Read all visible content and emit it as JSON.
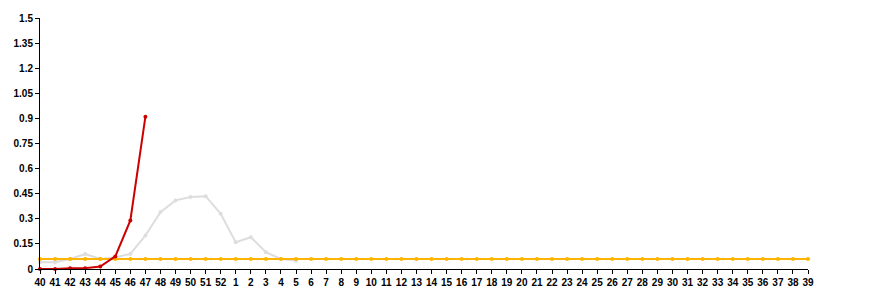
{
  "chart_data": {
    "type": "line",
    "categories": [
      "40",
      "41",
      "42",
      "43",
      "44",
      "45",
      "46",
      "47",
      "48",
      "49",
      "50",
      "51",
      "52",
      "1",
      "2",
      "3",
      "4",
      "5",
      "6",
      "7",
      "8",
      "9",
      "10",
      "11",
      "12",
      "13",
      "14",
      "15",
      "16",
      "17",
      "18",
      "19",
      "20",
      "21",
      "22",
      "23",
      "24",
      "25",
      "26",
      "27",
      "28",
      "29",
      "30",
      "31",
      "32",
      "33",
      "34",
      "35",
      "36",
      "37",
      "38",
      "39"
    ],
    "series": [
      {
        "color": "#dddddd",
        "marker": "circle",
        "values": [
          0.04,
          0.04,
          0.06,
          0.09,
          0.06,
          0.07,
          0.09,
          0.2,
          0.34,
          0.41,
          0.43,
          0.435,
          0.33,
          0.16,
          0.19,
          0.1,
          0.06,
          0.05,
          null,
          null,
          null,
          null,
          null,
          null,
          null,
          null,
          null,
          null,
          null,
          null,
          null,
          null,
          null,
          null,
          null,
          null,
          null,
          null,
          null,
          null,
          null,
          null,
          null,
          null,
          null,
          null,
          null,
          null,
          null,
          null,
          null,
          null
        ]
      },
      {
        "color": "#ffb400",
        "marker": "circle",
        "values": [
          0.06,
          0.06,
          0.06,
          0.06,
          0.06,
          0.06,
          0.06,
          0.06,
          0.06,
          0.06,
          0.06,
          0.06,
          0.06,
          0.06,
          0.06,
          0.06,
          0.06,
          0.06,
          0.06,
          0.06,
          0.06,
          0.06,
          0.06,
          0.06,
          0.06,
          0.06,
          0.06,
          0.06,
          0.06,
          0.06,
          0.06,
          0.06,
          0.06,
          0.06,
          0.06,
          0.06,
          0.06,
          0.06,
          0.06,
          0.06,
          0.06,
          0.06,
          0.06,
          0.06,
          0.06,
          0.06,
          0.06,
          0.06,
          0.06,
          0.06,
          0.06,
          0.06
        ]
      },
      {
        "color": "#cc0000",
        "marker": "circle",
        "values": [
          0,
          0,
          0.005,
          0.005,
          0.015,
          0.075,
          0.29,
          0.91,
          null,
          null,
          null,
          null,
          null,
          null,
          null,
          null,
          null,
          null,
          null,
          null,
          null,
          null,
          null,
          null,
          null,
          null,
          null,
          null,
          null,
          null,
          null,
          null,
          null,
          null,
          null,
          null,
          null,
          null,
          null,
          null,
          null,
          null,
          null,
          null,
          null,
          null,
          null,
          null,
          null,
          null,
          null,
          null
        ]
      }
    ],
    "ylim": [
      0,
      1.5
    ],
    "yticks": [
      0,
      0.15,
      0.3,
      0.45,
      0.6,
      0.75,
      0.9,
      1.05,
      1.2,
      1.35,
      1.5
    ],
    "grid": false
  }
}
